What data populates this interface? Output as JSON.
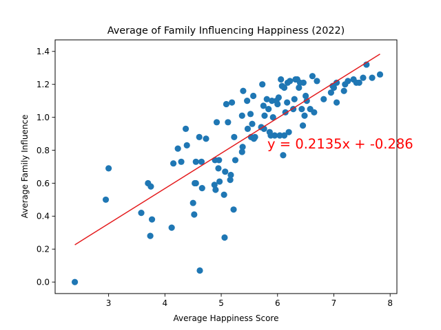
{
  "chart_data": {
    "type": "scatter",
    "title": "Average of Family Influencing Happiness (2022)",
    "xlabel": "Average Happiness Score",
    "ylabel": "Average Family Influence",
    "xlim": [
      2.05,
      8.12
    ],
    "ylim": [
      -0.07,
      1.47
    ],
    "xticks": [
      3,
      4,
      5,
      6,
      7,
      8
    ],
    "yticks": [
      0.0,
      0.2,
      0.4,
      0.6,
      0.8,
      1.0,
      1.2,
      1.4
    ],
    "grid": false,
    "colors": {
      "points": "#1f77b4",
      "fit": "#e41a1c",
      "axes": "#000000"
    },
    "series": [
      {
        "type": "scatter",
        "x": [
          2.4,
          2.95,
          3.0,
          3.58,
          3.7,
          3.74,
          3.75,
          3.77,
          4.12,
          4.15,
          4.23,
          4.29,
          4.37,
          4.39,
          4.5,
          4.52,
          4.53,
          4.55,
          4.55,
          4.61,
          4.62,
          4.65,
          4.66,
          4.73,
          4.88,
          4.89,
          4.9,
          4.92,
          4.95,
          4.96,
          4.97,
          5.05,
          5.06,
          5.07,
          5.09,
          5.12,
          5.16,
          5.17,
          5.19,
          5.22,
          5.23,
          5.25,
          5.37,
          5.37,
          5.38,
          5.39,
          5.46,
          5.47,
          5.52,
          5.53,
          5.55,
          5.57,
          5.58,
          5.6,
          5.71,
          5.73,
          5.75,
          5.76,
          5.77,
          5.81,
          5.84,
          5.86,
          5.88,
          5.9,
          5.92,
          5.95,
          5.98,
          6.0,
          6.02,
          6.04,
          6.06,
          6.08,
          6.1,
          6.12,
          6.12,
          6.14,
          6.17,
          6.18,
          6.2,
          6.22,
          6.28,
          6.3,
          6.32,
          6.35,
          6.38,
          6.4,
          6.43,
          6.45,
          6.46,
          6.48,
          6.5,
          6.52,
          6.58,
          6.62,
          6.65,
          6.7,
          6.82,
          6.95,
          6.98,
          7.0,
          7.05,
          7.05,
          7.18,
          7.2,
          7.25,
          7.35,
          7.4,
          7.45,
          7.52,
          7.58,
          7.68,
          7.82
        ],
        "y": [
          0.0,
          0.5,
          0.69,
          0.42,
          0.6,
          0.28,
          0.58,
          0.38,
          0.33,
          0.72,
          0.81,
          0.73,
          0.93,
          0.83,
          0.48,
          0.41,
          0.6,
          0.73,
          0.6,
          0.88,
          0.07,
          0.73,
          0.57,
          0.87,
          0.59,
          0.74,
          0.56,
          0.97,
          0.69,
          0.74,
          0.61,
          0.53,
          0.27,
          0.67,
          1.08,
          0.97,
          0.62,
          0.65,
          1.09,
          0.44,
          0.88,
          0.74,
          0.79,
          1.01,
          0.82,
          1.16,
          1.1,
          0.93,
          1.02,
          0.88,
          0.96,
          1.13,
          0.87,
          0.88,
          0.94,
          1.2,
          1.07,
          0.93,
          1.01,
          1.11,
          1.05,
          0.91,
          0.89,
          1.1,
          1.0,
          0.89,
          1.1,
          1.08,
          1.12,
          0.89,
          1.23,
          1.19,
          0.77,
          1.18,
          0.89,
          1.03,
          1.09,
          1.21,
          0.91,
          1.22,
          1.05,
          1.11,
          1.23,
          1.23,
          1.18,
          1.21,
          1.05,
          0.95,
          1.21,
          1.01,
          1.13,
          1.1,
          1.05,
          1.25,
          1.03,
          1.22,
          1.11,
          1.15,
          1.19,
          1.18,
          1.21,
          1.09,
          1.16,
          1.2,
          1.22,
          1.23,
          1.21,
          1.21,
          1.24,
          1.32,
          1.24,
          1.26
        ]
      },
      {
        "type": "line",
        "x": [
          2.4,
          7.82
        ],
        "y": [
          0.226,
          1.384
        ]
      }
    ],
    "annotations": [
      {
        "text": "y = 0.2135x + -0.286",
        "x": 5.82,
        "y": 0.81,
        "color": "#ff0000"
      }
    ]
  }
}
